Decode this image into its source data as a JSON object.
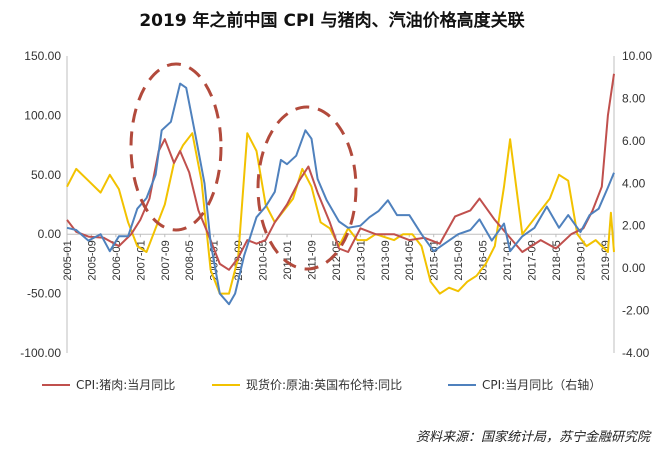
{
  "title": "2019 年之前中国 CPI 与猪肉、汽油价格高度关联",
  "source": "资料来源：国家统计局，苏宁金融研究院",
  "chart_data": {
    "type": "line",
    "title": "2019 年之前中国 CPI 与猪肉、汽油价格高度关联",
    "xlabel": "",
    "ylabel": "",
    "ylim": [
      -100,
      150
    ],
    "y2lim": [
      -4,
      10
    ],
    "y_ticks": [
      "150.00",
      "100.00",
      "50.00",
      "0.00",
      "-50.00",
      "-100.00"
    ],
    "y2_ticks": [
      "10.00",
      "8.00",
      "6.00",
      "4.00",
      "2.00",
      "0.00",
      "-2.00",
      "-4.00"
    ],
    "x_range": [
      "2005-01",
      "2019-12"
    ],
    "x_ticks": [
      "2005-01",
      "2005-09",
      "2006-05",
      "2007-01",
      "2007-09",
      "2008-05",
      "2009-01",
      "2009-09",
      "2010-05",
      "2011-01",
      "2011-09",
      "2012-05",
      "2013-01",
      "2013-09",
      "2014-05",
      "2015-01",
      "2015-09",
      "2016-05",
      "2017-01",
      "2017-09",
      "2018-05",
      "2019-01",
      "2019-09"
    ],
    "legend_position": "bottom",
    "grid": false,
    "series": [
      {
        "name": "CPI:猪肉:当月同比",
        "color": "#c0504d",
        "axis": "left",
        "points": [
          [
            "2005-01",
            12
          ],
          [
            "2005-04",
            2
          ],
          [
            "2005-08",
            -2
          ],
          [
            "2006-01",
            -3
          ],
          [
            "2006-06",
            -10
          ],
          [
            "2006-10",
            0
          ],
          [
            "2007-01",
            12
          ],
          [
            "2007-04",
            30
          ],
          [
            "2007-07",
            70
          ],
          [
            "2007-09",
            80
          ],
          [
            "2007-12",
            60
          ],
          [
            "2008-02",
            70
          ],
          [
            "2008-05",
            52
          ],
          [
            "2008-08",
            20
          ],
          [
            "2008-12",
            -5
          ],
          [
            "2009-03",
            -25
          ],
          [
            "2009-06",
            -30
          ],
          [
            "2009-09",
            -20
          ],
          [
            "2009-12",
            -5
          ],
          [
            "2010-03",
            -8
          ],
          [
            "2010-06",
            -5
          ],
          [
            "2010-09",
            10
          ],
          [
            "2011-01",
            25
          ],
          [
            "2011-05",
            45
          ],
          [
            "2011-08",
            57
          ],
          [
            "2011-11",
            35
          ],
          [
            "2012-03",
            10
          ],
          [
            "2012-06",
            -12
          ],
          [
            "2012-09",
            -15
          ],
          [
            "2013-01",
            5
          ],
          [
            "2013-06",
            0
          ],
          [
            "2013-12",
            0
          ],
          [
            "2014-05",
            -5
          ],
          [
            "2014-10",
            -3
          ],
          [
            "2015-03",
            -8
          ],
          [
            "2015-08",
            15
          ],
          [
            "2016-01",
            20
          ],
          [
            "2016-04",
            30
          ],
          [
            "2016-09",
            12
          ],
          [
            "2017-01",
            0
          ],
          [
            "2017-06",
            -15
          ],
          [
            "2017-12",
            -5
          ],
          [
            "2018-05",
            -12
          ],
          [
            "2018-10",
            0
          ],
          [
            "2019-02",
            5
          ],
          [
            "2019-05",
            20
          ],
          [
            "2019-08",
            40
          ],
          [
            "2019-10",
            100
          ],
          [
            "2019-12",
            135
          ]
        ]
      },
      {
        "name": "现货价:原油:英国布伦特:同比",
        "color": "#f2c200",
        "axis": "left",
        "points": [
          [
            "2005-01",
            40
          ],
          [
            "2005-04",
            55
          ],
          [
            "2005-08",
            45
          ],
          [
            "2005-12",
            35
          ],
          [
            "2006-03",
            50
          ],
          [
            "2006-06",
            38
          ],
          [
            "2006-09",
            10
          ],
          [
            "2006-12",
            -10
          ],
          [
            "2007-03",
            -15
          ],
          [
            "2007-06",
            5
          ],
          [
            "2007-09",
            25
          ],
          [
            "2007-12",
            60
          ],
          [
            "2008-03",
            75
          ],
          [
            "2008-06",
            85
          ],
          [
            "2008-09",
            45
          ],
          [
            "2008-12",
            -30
          ],
          [
            "2009-03",
            -50
          ],
          [
            "2009-06",
            -50
          ],
          [
            "2009-09",
            -20
          ],
          [
            "2009-12",
            85
          ],
          [
            "2010-03",
            70
          ],
          [
            "2010-06",
            25
          ],
          [
            "2010-09",
            10
          ],
          [
            "2010-12",
            20
          ],
          [
            "2011-03",
            30
          ],
          [
            "2011-06",
            55
          ],
          [
            "2011-09",
            40
          ],
          [
            "2011-12",
            10
          ],
          [
            "2012-03",
            5
          ],
          [
            "2012-06",
            -10
          ],
          [
            "2012-09",
            5
          ],
          [
            "2012-12",
            -5
          ],
          [
            "2013-03",
            -5
          ],
          [
            "2013-06",
            0
          ],
          [
            "2013-12",
            -5
          ],
          [
            "2014-03",
            0
          ],
          [
            "2014-06",
            0
          ],
          [
            "2014-09",
            -10
          ],
          [
            "2014-12",
            -40
          ],
          [
            "2015-03",
            -50
          ],
          [
            "2015-06",
            -45
          ],
          [
            "2015-09",
            -48
          ],
          [
            "2015-12",
            -40
          ],
          [
            "2016-03",
            -35
          ],
          [
            "2016-06",
            -25
          ],
          [
            "2016-09",
            -10
          ],
          [
            "2016-12",
            40
          ],
          [
            "2017-02",
            80
          ],
          [
            "2017-06",
            0
          ],
          [
            "2017-09",
            10
          ],
          [
            "2017-12",
            20
          ],
          [
            "2018-03",
            30
          ],
          [
            "2018-06",
            50
          ],
          [
            "2018-09",
            45
          ],
          [
            "2018-12",
            0
          ],
          [
            "2019-03",
            -10
          ],
          [
            "2019-06",
            -5
          ],
          [
            "2019-08",
            -10
          ],
          [
            "2019-10",
            -15
          ],
          [
            "2019-11",
            18
          ],
          [
            "2019-12",
            -15
          ]
        ]
      },
      {
        "name": "CPI:当月同比（右轴）",
        "color": "#4f81bd",
        "axis": "right",
        "points": [
          [
            "2005-01",
            1.9
          ],
          [
            "2005-04",
            1.8
          ],
          [
            "2005-08",
            1.3
          ],
          [
            "2005-12",
            1.6
          ],
          [
            "2006-03",
            0.8
          ],
          [
            "2006-06",
            1.5
          ],
          [
            "2006-09",
            1.5
          ],
          [
            "2006-12",
            2.8
          ],
          [
            "2007-03",
            3.3
          ],
          [
            "2007-06",
            4.4
          ],
          [
            "2007-08",
            6.5
          ],
          [
            "2007-11",
            6.9
          ],
          [
            "2008-02",
            8.7
          ],
          [
            "2008-04",
            8.5
          ],
          [
            "2008-07",
            6.3
          ],
          [
            "2008-10",
            4.0
          ],
          [
            "2008-12",
            1.2
          ],
          [
            "2009-03",
            -1.2
          ],
          [
            "2009-06",
            -1.7
          ],
          [
            "2009-08",
            -1.2
          ],
          [
            "2009-11",
            0.6
          ],
          [
            "2010-01",
            1.5
          ],
          [
            "2010-03",
            2.4
          ],
          [
            "2010-06",
            2.9
          ],
          [
            "2010-09",
            3.6
          ],
          [
            "2010-11",
            5.1
          ],
          [
            "2011-01",
            4.9
          ],
          [
            "2011-04",
            5.3
          ],
          [
            "2011-07",
            6.5
          ],
          [
            "2011-09",
            6.1
          ],
          [
            "2011-11",
            4.2
          ],
          [
            "2012-02",
            3.2
          ],
          [
            "2012-06",
            2.2
          ],
          [
            "2012-09",
            1.9
          ],
          [
            "2013-01",
            2.0
          ],
          [
            "2013-04",
            2.4
          ],
          [
            "2013-07",
            2.7
          ],
          [
            "2013-10",
            3.2
          ],
          [
            "2014-01",
            2.5
          ],
          [
            "2014-05",
            2.5
          ],
          [
            "2014-09",
            1.6
          ],
          [
            "2015-01",
            0.8
          ],
          [
            "2015-05",
            1.2
          ],
          [
            "2015-09",
            1.6
          ],
          [
            "2016-01",
            1.8
          ],
          [
            "2016-04",
            2.3
          ],
          [
            "2016-08",
            1.3
          ],
          [
            "2016-12",
            2.1
          ],
          [
            "2017-02",
            0.8
          ],
          [
            "2017-06",
            1.5
          ],
          [
            "2017-10",
            1.9
          ],
          [
            "2018-02",
            2.9
          ],
          [
            "2018-06",
            1.9
          ],
          [
            "2018-09",
            2.5
          ],
          [
            "2019-01",
            1.7
          ],
          [
            "2019-04",
            2.5
          ],
          [
            "2019-07",
            2.8
          ],
          [
            "2019-10",
            3.8
          ],
          [
            "2019-12",
            4.5
          ]
        ]
      }
    ]
  }
}
